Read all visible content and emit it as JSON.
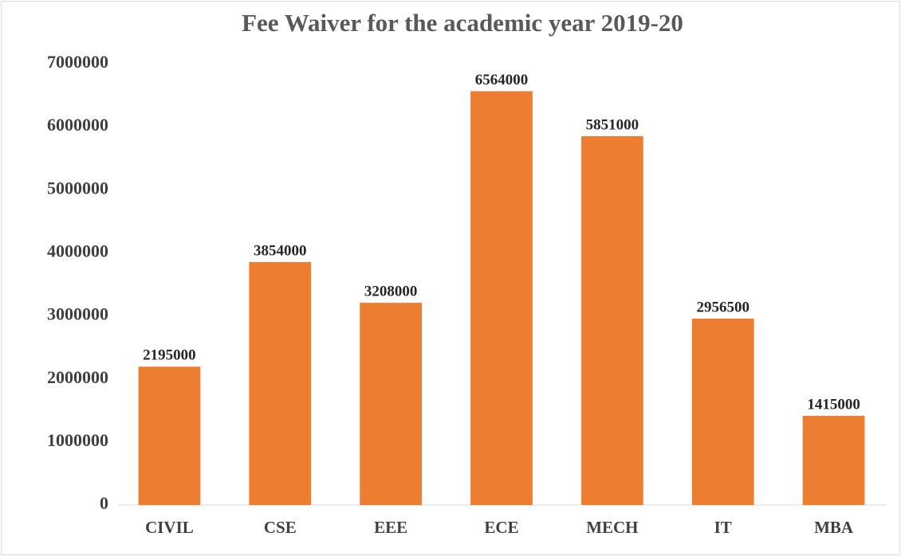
{
  "chart_data": {
    "type": "bar",
    "title": "Fee Waiver for the academic year 2019-20",
    "categories": [
      "CIVIL",
      "CSE",
      "EEE",
      "ECE",
      "MECH",
      "IT",
      "MBA"
    ],
    "values": [
      2195000,
      3854000,
      3208000,
      6564000,
      5851000,
      2956500,
      1415000
    ],
    "color": "#ed7d31",
    "ylim": [
      0,
      7000000
    ],
    "yticks": [
      0,
      1000000,
      2000000,
      3000000,
      4000000,
      5000000,
      6000000,
      7000000
    ],
    "grid": false
  }
}
